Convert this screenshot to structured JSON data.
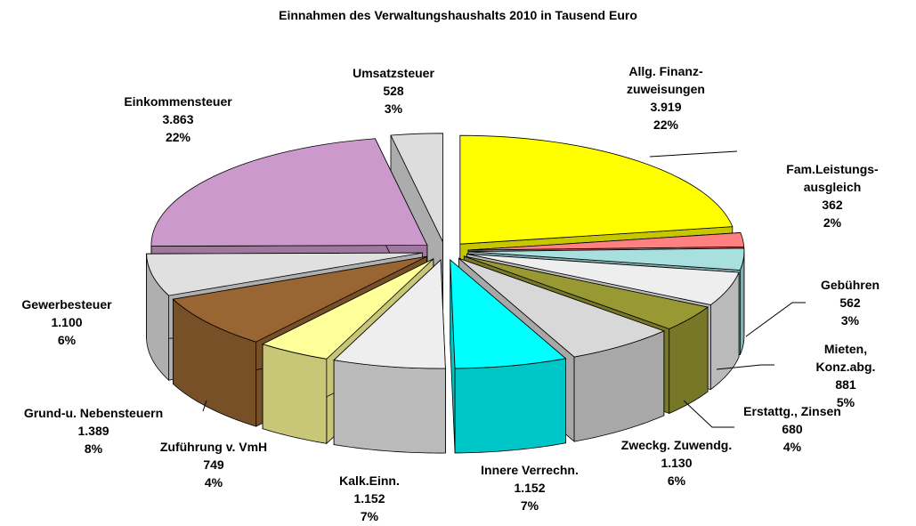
{
  "chart_data": {
    "type": "pie",
    "title": "Einnahmen des Verwaltungshaushalts 2010 in Tausend Euro",
    "categories": [
      "Allg. Finanz-\nzuweisungen",
      "Fam.Leistungs-\nausgleich",
      "Gebühren",
      "Mieten, Konz.abg.",
      "Erstattg., Zinsen",
      "Zweckg. Zuwendg.",
      "Innere Verrechn.",
      "Kalk.Einn.",
      "Zuführung v. VmH",
      "Grund-u. Nebensteuern",
      "Gewerbesteuer",
      "Einkommensteuer",
      "Umsatzsteuer"
    ],
    "values": [
      3919,
      362,
      562,
      881,
      680,
      1130,
      1152,
      1152,
      749,
      1389,
      1100,
      3863,
      528
    ],
    "value_labels": [
      "3.919",
      "362",
      "562",
      "881",
      "680",
      "1.130",
      "1.152",
      "1.152",
      "749",
      "1.389",
      "1.100",
      "3.863",
      "528"
    ],
    "percents": [
      22,
      2,
      3,
      5,
      4,
      6,
      7,
      7,
      4,
      8,
      6,
      22,
      3
    ],
    "percent_labels": [
      "22%",
      "2%",
      "3%",
      "5%",
      "4%",
      "6%",
      "7%",
      "7%",
      "4%",
      "8%",
      "6%",
      "22%",
      "3%"
    ],
    "colors": [
      "#ffff00",
      "#ff8080",
      "#a8e0e0",
      "#eeeeee",
      "#999933",
      "#d8d8d8",
      "#00ffff",
      "#eeeeee",
      "#ffff99",
      "#996633",
      "#e0e0e0",
      "#cc99cc",
      "#dddddd"
    ]
  }
}
